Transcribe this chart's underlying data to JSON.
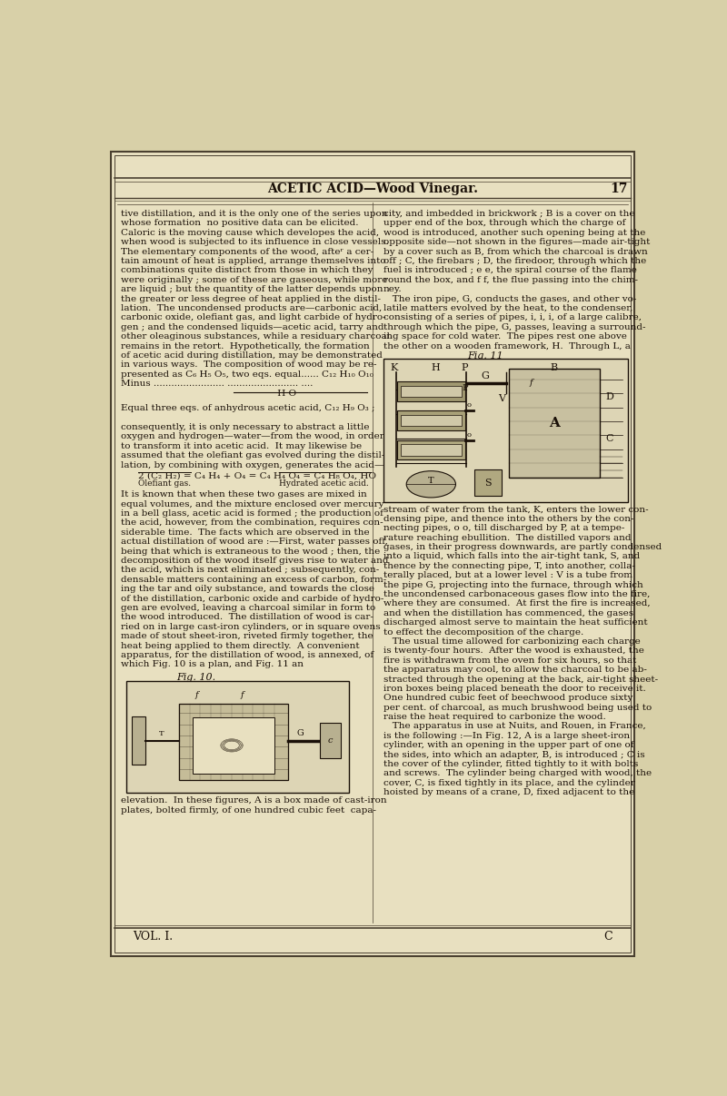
{
  "bg_color": "#d8d0a8",
  "page_bg": "#e8e0c0",
  "border_color": "#4a4030",
  "header_text": "ACETIC ACID—Wood Vinegar.",
  "page_number": "17",
  "footer_left": "VOL. I.",
  "footer_right": "C",
  "left_col_text": [
    "tive distillation, and it is the only one of the series upon",
    "whose formation  no positive data can be elicited.",
    "Caloric is the moving cause which developes the acid,",
    "when wood is subjected to its influence in close vessels.",
    "The elementary components of the wood, afteʳ a cer-",
    "tain amount of heat is applied, arrange themselves into",
    "combinations quite distinct from those in which they",
    "were originally ; some of these are gaseous, while more",
    "are liquid ; but the quantity of the latter depends upon",
    "the greater or less degree of heat applied in the distil-",
    "lation.  The uncondensed products are—carbonic acid,",
    "carbonic oxide, olefiant gas, and light carbide of hydro-",
    "gen ; and the condensed liquids—acetic acid, tarry and",
    "other oleaginous substances, while a residuary charcoal",
    "remains in the retort.  Hypothetically, the formation",
    "of acetic acid during distillation, may be demonstrated",
    "in various ways.  The composition of wood may be re-",
    "presented as C₆ H₅ O₅, two eqs. equal...... C₁₂ H₁₀ O₁₀",
    "Minus ........................ ........................ ....",
    "                                                     H O"
  ],
  "left_col_text2": [
    "Equal three eqs. of anhydrous acetic acid, C₁₂ H₉ O₃ ;",
    "",
    "consequently, it is only necessary to abstract a little",
    "oxygen and hydrogen—water—from the wood, in order",
    "to transform it into acetic acid.  It may likewise be",
    "assumed that the olefiant gas evolved during the distil-",
    "lation, by combining with oxygen, generates the acid—"
  ],
  "equation_line": "2 (C₂ H₂) = C₄ H₄ + O₄ = C₄ H₄ O₄ = C₄ H₈ O₄, HO",
  "eq_label_left": "Olefiant gas.",
  "eq_label_right": "Hydrated acetic acid.",
  "left_col_text3": [
    "It is known that when these two gases are mixed in",
    "equal volumes, and the mixture enclosed over mercury",
    "in a bell glass, acetic acid is formed ; the production of",
    "the acid, however, from the combination, requires con-",
    "siderable time.  The facts which are observed in the",
    "actual distillation of wood are :—First, water passes off,",
    "being that which is extraneous to the wood ; then, the",
    "decomposition of the wood itself gives rise to water and",
    "the acid, which is next eliminated ; subsequently, con-",
    "densable matters containing an excess of carbon, form-",
    "ing the tar and oily substance, and towards the close",
    "of the distillation, carbonic oxide and carbide of hydro-",
    "gen are evolved, leaving a charcoal similar in form to",
    "the wood introduced.  The distillation of wood is car-",
    "ried on in large cast-iron cylinders, or in square ovens",
    "made of stout sheet-iron, riveted firmly together, the",
    "heat being applied to them directly.  A convenient",
    "apparatus, for the distillation of wood, is annexed, of",
    "which Fig. 10 is a plan, and Fig. 11 an"
  ],
  "fig10_caption": "Fig. 10.",
  "left_bottom_text": [
    "elevation.  In these figures, A is a box made of cast-iron",
    "plates, bolted firmly, of one hundred cubic feet  capa-"
  ],
  "right_col_text": [
    "city, and imbedded in brickwork ; B is a cover on the",
    "upper end of the box, through which the charge of",
    "wood is introduced, another such opening being at the",
    "opposite side—not shown in the figures—made air-tight",
    "by a cover such as B, from which the charcoal is drawn",
    "off ; C, the firebars ; D, the firedoor, through which the",
    "fuel is introduced ; e e, the spiral course of the flame",
    "round the box, and f f, the flue passing into the chim-",
    "ney.",
    "   The iron pipe, G, conducts the gases, and other vo-",
    "latile matters evolved by the heat, to the condenser,",
    "consisting of a series of pipes, i, i, i, of a large calibre,",
    "through which the pipe, G, passes, leaving a surround-",
    "ing space for cold water.  The pipes rest one above",
    "the other on a wooden framework, H.  Through L, a"
  ],
  "fig11_caption": "Fig. 11",
  "right_col_text2": [
    "stream of water from the tank, K, enters the lower con-",
    "densing pipe, and thence into the others by the con-",
    "necting pipes, o o, till discharged by P, at a tempe-",
    "rature reaching ebullition.  The distilled vapors and",
    "gases, in their progress downwards, are partly condensed",
    "into a liquid, which falls into the air-tight tank, S, and",
    "thence by the connecting pipe, T, into another, colla-",
    "terally placed, but at a lower level : V is a tube from",
    "the pipe G, projecting into the furnace, through which",
    "the uncondensed carbonaceous gases flow into the fire,",
    "where they are consumed.  At first the fire is increased,",
    "and when the distillation has commenced, the gases",
    "discharged almost serve to maintain the heat sufficient",
    "to effect the decomposition of the charge.",
    "   The usual time allowed for carbonizing each charge",
    "is twenty-four hours.  After the wood is exhausted, the",
    "fire is withdrawn from the oven for six hours, so that",
    "the apparatus may cool, to allow the charcoal to be ab-",
    "stracted through the opening at the back, air-tight sheet-",
    "iron boxes being placed beneath the door to receive it.",
    "One hundred cubic feet of beechwood produce sixty",
    "per cent. of charcoal, as much brushwood being used to",
    "raise the heat required to carbonize the wood.",
    "   The apparatus in use at Nuits, and Rouen, in France,",
    "is the following :—In Fig. 12, A is a large sheet-iron",
    "cylinder, with an opening in the upper part of one of",
    "the sides, into which an adapter, B, is introduced ; C is",
    "the cover of the cylinder, fitted tightly to it with bolts",
    "and screws.  The cylinder being charged with wood, the",
    "cover, C, is fixed tightly in its place, and the cylinder",
    "hoisted by means of a crane, D, fixed adjacent to the"
  ]
}
